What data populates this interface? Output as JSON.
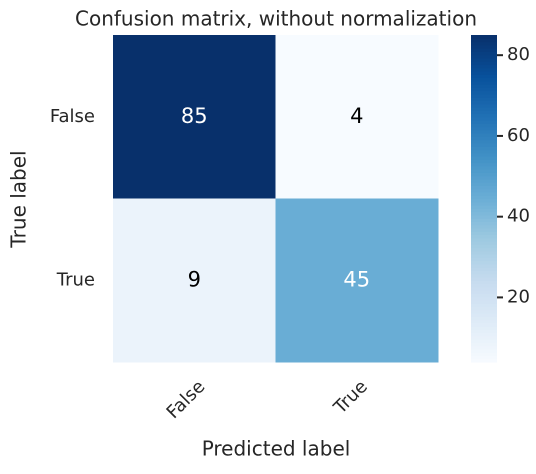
{
  "chart_data": {
    "type": "heatmap",
    "title": "Confusion matrix, without normalization",
    "x_label": "Predicted label",
    "y_label": "True label",
    "x_categories": [
      "False",
      "True"
    ],
    "y_categories": [
      "False",
      "True"
    ],
    "values": [
      [
        85,
        4
      ],
      [
        9,
        45
      ]
    ],
    "colormap": [
      "#f7fbff",
      "#deebf7",
      "#c6dbef",
      "#9ecae1",
      "#6baed6",
      "#4292c6",
      "#2171b5",
      "#08519c",
      "#08306b"
    ],
    "zlim": [
      4,
      85
    ],
    "zticks": [
      20,
      40,
      60,
      80
    ]
  }
}
